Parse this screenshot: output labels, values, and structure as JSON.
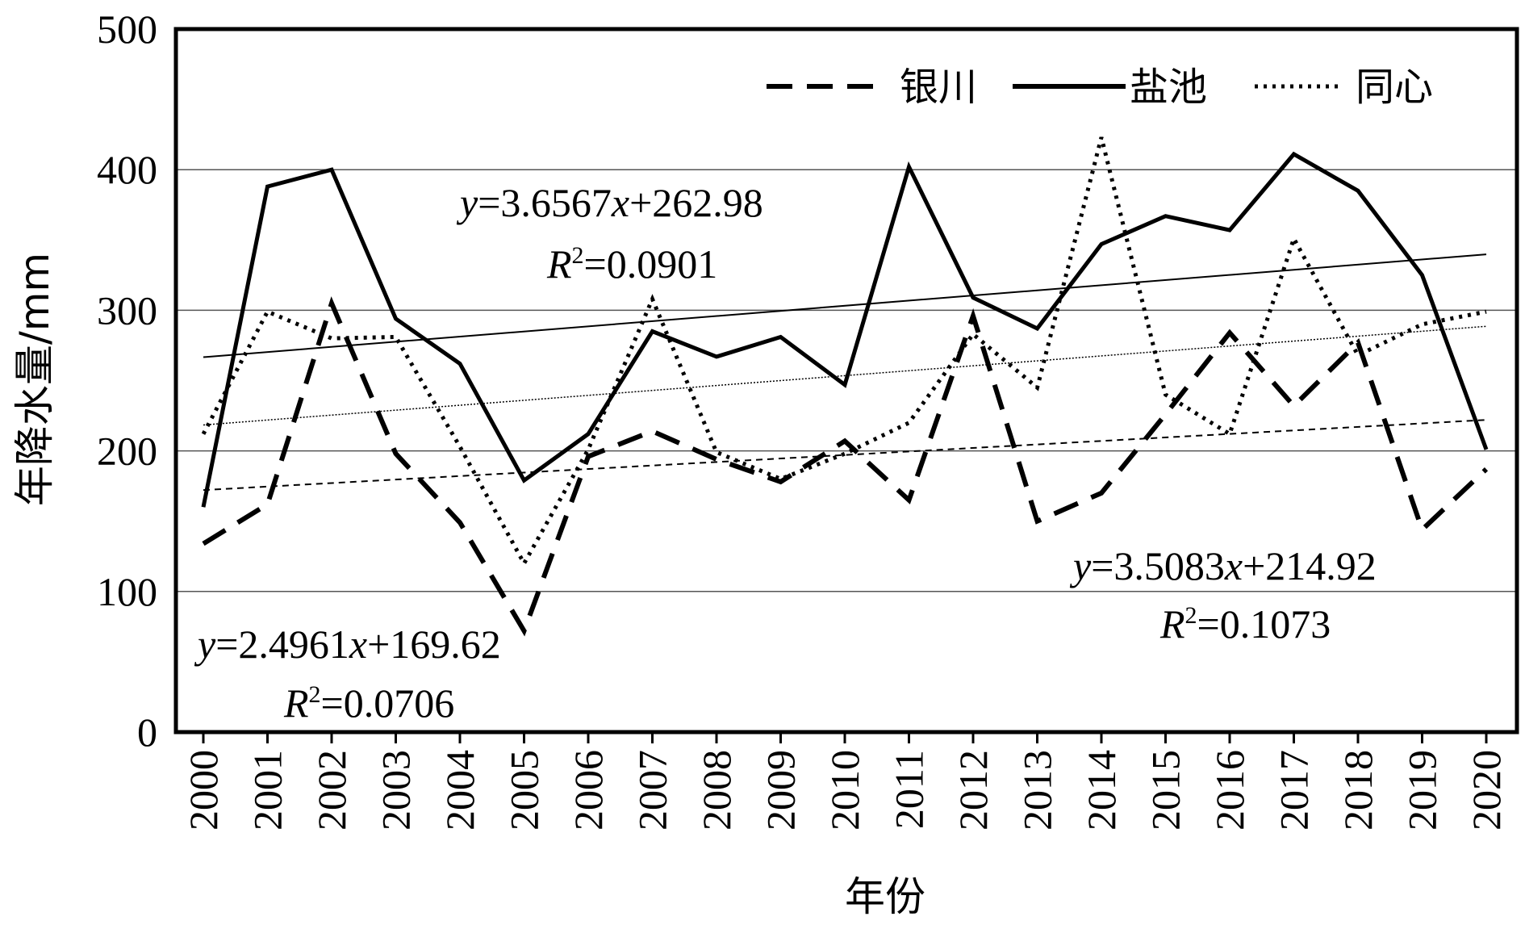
{
  "chart_data": {
    "type": "line",
    "title": "",
    "xlabel": "年份",
    "ylabel": "年降水量/mm",
    "x": [
      2000,
      2001,
      2002,
      2003,
      2004,
      2005,
      2006,
      2007,
      2008,
      2009,
      2010,
      2011,
      2012,
      2013,
      2014,
      2015,
      2016,
      2017,
      2018,
      2019,
      2020
    ],
    "x_tick_labels": [
      "2000",
      "2001",
      "2002",
      "2003",
      "2004",
      "2005",
      "2006",
      "2007",
      "2008",
      "2009",
      "2010",
      "2011",
      "2012",
      "2013",
      "2014",
      "2015",
      "2016",
      "2017",
      "2018",
      "2019",
      "2020"
    ],
    "ylim": [
      0,
      500
    ],
    "y_ticks": [
      0,
      100,
      200,
      300,
      400,
      500
    ],
    "y_tick_labels": [
      "0",
      "100",
      "200",
      "300",
      "400",
      "500"
    ],
    "grid": "horizontal",
    "legend_position": "top-right",
    "series": [
      {
        "name": "银川",
        "style": "dashed",
        "color": "#000000",
        "values": [
          134,
          162,
          305,
          198,
          149,
          72,
          196,
          214,
          194,
          178,
          207,
          165,
          296,
          150,
          170,
          226,
          284,
          232,
          277,
          144,
          187
        ]
      },
      {
        "name": "盐池",
        "style": "solid",
        "color": "#000000",
        "values": [
          160,
          388,
          400,
          294,
          262,
          179,
          212,
          285,
          267,
          281,
          247,
          402,
          309,
          287,
          347,
          367,
          357,
          411,
          385,
          325,
          201
        ]
      },
      {
        "name": "同心",
        "style": "dotted",
        "color": "#000000",
        "values": [
          212,
          299,
          280,
          281,
          203,
          120,
          201,
          308,
          199,
          180,
          198,
          220,
          283,
          245,
          423,
          240,
          212,
          351,
          268,
          290,
          299
        ]
      }
    ],
    "trendlines": [
      {
        "series": "银川",
        "style": "dashed",
        "slope": 2.4961,
        "intercept": 169.62
      },
      {
        "series": "盐池",
        "style": "solid",
        "slope": 3.6567,
        "intercept": 262.98
      },
      {
        "series": "同心",
        "style": "dotted",
        "slope": 3.5083,
        "intercept": 214.92
      }
    ],
    "annotations": [
      {
        "series": "盐池",
        "y_prefix": "y",
        "y_eq": "=3.6567",
        "x_var": "x",
        "y_rest": "+262.98",
        "r_prefix": "R",
        "r_sup": "2",
        "r_eq": "=0.0901"
      },
      {
        "series": "同心",
        "y_prefix": "y",
        "y_eq": "=3.5083",
        "x_var": "x",
        "y_rest": "+214.92",
        "r_prefix": "R",
        "r_sup": "2",
        "r_eq": "=0.1073"
      },
      {
        "series": "银川",
        "y_prefix": "y",
        "y_eq": "=2.4961",
        "x_var": "x",
        "y_rest": "+169.62",
        "r_prefix": "R",
        "r_sup": "2",
        "r_eq": "=0.0706"
      }
    ]
  }
}
